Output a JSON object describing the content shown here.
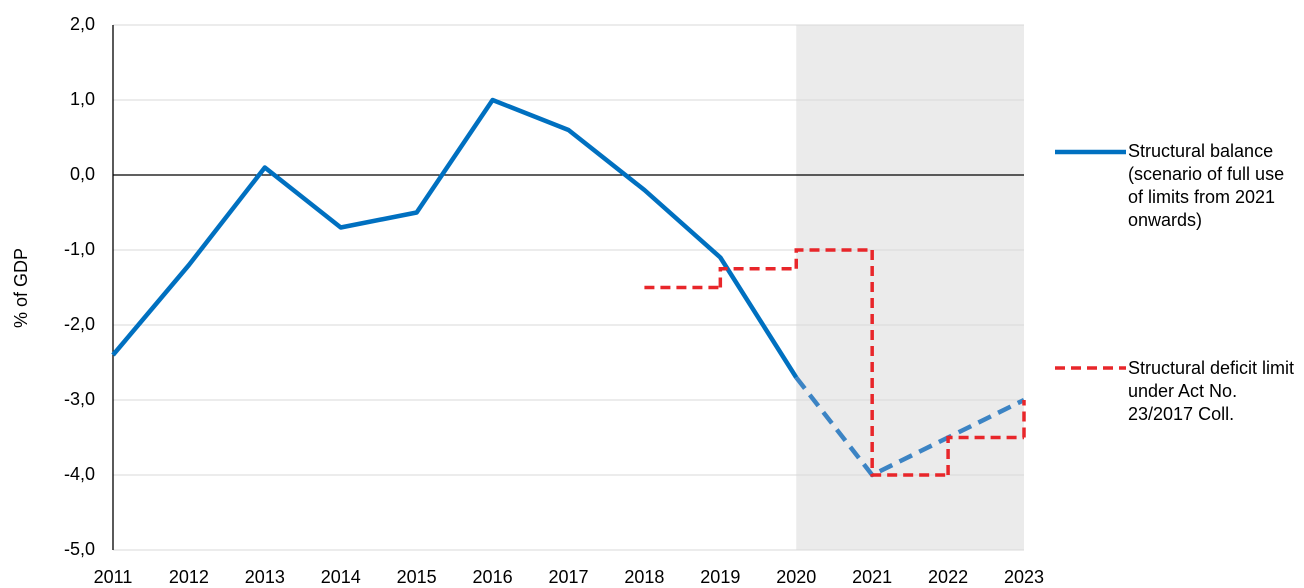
{
  "chart_data": {
    "type": "line",
    "y_axis_label": "% of GDP",
    "xlim": [
      2011,
      2023
    ],
    "xticks": [
      2011,
      2012,
      2013,
      2014,
      2015,
      2016,
      2017,
      2018,
      2019,
      2020,
      2021,
      2022,
      2023
    ],
    "ylim": [
      -5,
      2
    ],
    "yticks": [
      {
        "value": -5,
        "label": "-5,0"
      },
      {
        "value": -4,
        "label": "-4,0"
      },
      {
        "value": -3,
        "label": "-3,0"
      },
      {
        "value": -2,
        "label": "-2,0"
      },
      {
        "value": -1,
        "label": "-1,0"
      },
      {
        "value": 0,
        "label": "0,0"
      },
      {
        "value": 1,
        "label": "1,0"
      },
      {
        "value": 2,
        "label": "2,0"
      }
    ],
    "grid": true,
    "shaded_from_x": 2020,
    "series": [
      {
        "name": "Structural balance (scenario of full use of limits from 2021 onwards)",
        "color": "#0070c0",
        "forecast_color": "#3c84c4",
        "dashed_from_x": 2020,
        "step": false,
        "x": [
          2011,
          2012,
          2013,
          2014,
          2015,
          2016,
          2017,
          2018,
          2019,
          2020,
          2021,
          2022,
          2023
        ],
        "values": [
          -2.4,
          -1.2,
          0.1,
          -0.7,
          -0.5,
          1.0,
          0.6,
          -0.2,
          -1.1,
          -2.7,
          -4.0,
          -3.5,
          -3.0
        ]
      },
      {
        "name": "Structural deficit limit under Act No. 23/2017 Coll.",
        "color": "#e8262a",
        "dashed": true,
        "step": true,
        "x": [
          2018,
          2019,
          2020,
          2021,
          2022,
          2023
        ],
        "values": [
          -1.5,
          -1.25,
          -1.0,
          -4.0,
          -3.5,
          -3.0
        ]
      }
    ]
  }
}
